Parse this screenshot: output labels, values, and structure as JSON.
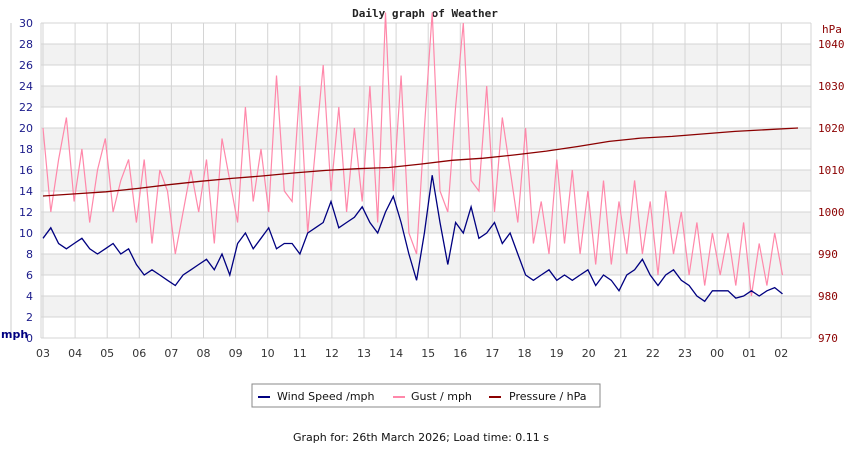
{
  "chart_data": {
    "type": "line",
    "title": "Daily graph of Weather",
    "ylabel_left": "mph",
    "ylabel_right": "hPa",
    "ylim_left": [
      0,
      30
    ],
    "ylim_right": [
      970,
      1045
    ],
    "left_ticks": [
      "0",
      "2",
      "4",
      "6",
      "8",
      "10",
      "12",
      "14",
      "16",
      "18",
      "20",
      "22",
      "24",
      "26",
      "28",
      "30"
    ],
    "right_ticks": [
      "970",
      "980",
      "990",
      "1000",
      "1010",
      "1020",
      "1030",
      "1040"
    ],
    "x_ticks": [
      "03",
      "04",
      "05",
      "06",
      "07",
      "08",
      "09",
      "10",
      "11",
      "12",
      "13",
      "14",
      "15",
      "16",
      "17",
      "18",
      "19",
      "20",
      "21",
      "22",
      "23",
      "00",
      "01",
      "02"
    ],
    "grid": true,
    "legend_position": "bottom",
    "series": [
      {
        "name": "Wind Speed /mph",
        "axis": "left",
        "color": "#000080",
        "values": [
          9.5,
          10.5,
          9,
          8.5,
          9,
          9.5,
          8.5,
          8,
          8.5,
          9,
          8,
          8.5,
          7,
          6,
          6.5,
          6,
          5.5,
          5,
          6,
          6.5,
          7,
          7.5,
          6.5,
          8,
          6,
          9,
          10,
          8.5,
          9.5,
          10.5,
          8.5,
          9,
          9,
          8,
          10,
          10.5,
          11,
          13,
          10.5,
          11,
          11.5,
          12.5,
          11,
          10,
          12,
          13.5,
          11,
          8,
          5.5,
          10,
          15.5,
          11,
          7,
          11,
          10,
          12.5,
          9.5,
          10,
          11,
          9,
          10,
          8,
          6,
          5.5,
          6,
          6.5,
          5.5,
          6,
          5.5,
          6,
          6.5,
          5,
          6,
          5.5,
          4.5,
          6,
          6.5,
          7.5,
          6,
          5,
          6,
          6.5,
          5.5,
          5,
          4,
          3.5,
          4.5,
          4.5,
          4.5,
          3.8,
          4,
          4.5,
          4,
          4.5,
          4.8,
          4.2
        ]
      },
      {
        "name": "Gust / mph",
        "axis": "left",
        "color": "#ff88aa",
        "values": [
          20,
          12,
          17,
          21,
          13,
          18,
          11,
          16,
          19,
          12,
          15,
          17,
          11,
          17,
          9,
          16,
          14,
          8,
          12,
          16,
          12,
          17,
          9,
          19,
          15,
          11,
          22,
          13,
          18,
          12,
          25,
          14,
          13,
          24,
          10,
          18,
          26,
          14,
          22,
          12,
          20,
          13,
          24,
          11,
          31,
          14,
          25,
          10,
          8,
          20,
          31,
          14,
          12,
          22,
          30,
          15,
          14,
          24,
          12,
          21,
          16,
          11,
          20,
          9,
          13,
          8,
          17,
          9,
          16,
          8,
          14,
          7,
          15,
          7,
          13,
          8,
          15,
          8,
          13,
          6,
          14,
          8,
          12,
          6,
          11,
          5,
          10,
          6,
          10,
          5,
          11,
          4,
          9,
          5,
          10,
          6
        ]
      },
      {
        "name": "Pressure / hPa",
        "axis": "right",
        "color": "#8b0000",
        "values": [
          1003.8,
          1004.3,
          1004.8,
          1005.6,
          1006.5,
          1007.3,
          1008.0,
          1008.6,
          1009.3,
          1009.9,
          1010.3,
          1010.6,
          1011.4,
          1012.3,
          1012.8,
          1013.6,
          1014.5,
          1015.6,
          1016.8,
          1017.6,
          1018.0,
          1018.6,
          1019.2,
          1019.6,
          1020.0
        ]
      }
    ]
  },
  "footer": "Graph for: 26th March 2026; Load time: 0.11 s"
}
